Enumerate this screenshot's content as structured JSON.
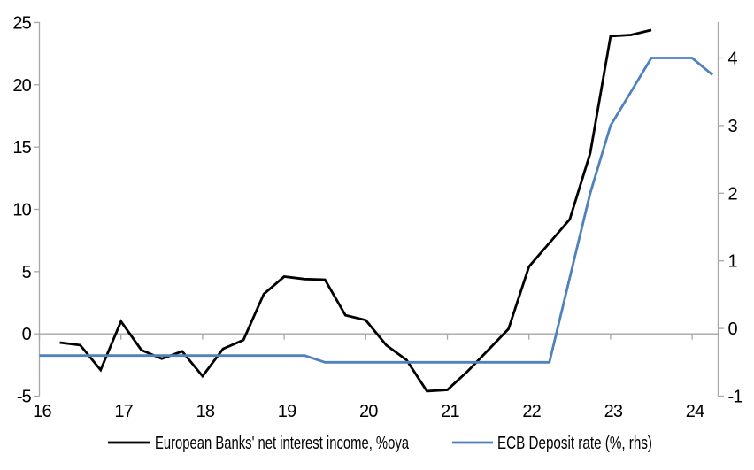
{
  "chart_data": {
    "type": "line",
    "title": "",
    "x_axis": {
      "min": 16,
      "max": 24.32,
      "ticks": [
        16,
        17,
        18,
        19,
        20,
        21,
        22,
        23,
        24
      ]
    },
    "left_axis": {
      "min": -5,
      "max": 25,
      "ticks": [
        25,
        20,
        15,
        10,
        5,
        0,
        -5
      ]
    },
    "right_axis": {
      "min": -1,
      "max": 4.07,
      "ticks": [
        4,
        3,
        2,
        1,
        0,
        -1
      ]
    },
    "grid": "zero-line-only",
    "legend_position": "bottom",
    "series": [
      {
        "name": "European Banks' net interest income, %oya",
        "axis": "left",
        "color": "#000000",
        "x": [
          16.25,
          16.5,
          16.75,
          17.0,
          17.25,
          17.5,
          17.75,
          18.0,
          18.25,
          18.5,
          18.75,
          19.0,
          19.25,
          19.5,
          19.75,
          20.0,
          20.25,
          20.5,
          20.75,
          21.0,
          21.25,
          21.5,
          21.75,
          22.0,
          22.25,
          22.5,
          22.75,
          23.0,
          23.25,
          23.5
        ],
        "values": [
          -0.7,
          -0.9,
          -2.9,
          1.0,
          -1.3,
          -2.0,
          -1.4,
          -3.4,
          -1.2,
          -0.5,
          3.2,
          4.6,
          4.4,
          4.35,
          1.5,
          1.1,
          -0.9,
          -2.1,
          -4.6,
          -4.5,
          -3.0,
          -1.3,
          0.4,
          5.4,
          7.3,
          9.2,
          14.5,
          23.9,
          24.0,
          24.4
        ]
      },
      {
        "name": "ECB Deposit rate (%, rhs)",
        "axis": "right",
        "color": "#4f81bd",
        "x": [
          16.0,
          16.25,
          16.5,
          16.75,
          17.0,
          17.25,
          17.5,
          17.75,
          18.0,
          18.25,
          18.5,
          18.75,
          19.0,
          19.25,
          19.5,
          19.75,
          20.0,
          20.25,
          20.5,
          20.75,
          21.0,
          21.25,
          21.5,
          21.75,
          22.0,
          22.25,
          22.5,
          22.75,
          23.0,
          23.25,
          23.5,
          23.75,
          24.0,
          24.25
        ],
        "values": [
          -0.4,
          -0.4,
          -0.4,
          -0.4,
          -0.4,
          -0.4,
          -0.4,
          -0.4,
          -0.4,
          -0.4,
          -0.4,
          -0.4,
          -0.4,
          -0.4,
          -0.5,
          -0.5,
          -0.5,
          -0.5,
          -0.5,
          -0.5,
          -0.5,
          -0.5,
          -0.5,
          -0.5,
          -0.5,
          -0.5,
          0.75,
          2.0,
          3.0,
          3.5,
          4.0,
          4.0,
          4.0,
          3.75
        ]
      }
    ]
  },
  "legend": {
    "series1_label": "European Banks' net interest income, %oya",
    "series2_label": "ECB Deposit rate (%, rhs)"
  },
  "colors": {
    "line1": "#000000",
    "line2": "#4f81bd",
    "axis": "#a6a6a6",
    "text": "#000000",
    "background": "#ffffff"
  }
}
